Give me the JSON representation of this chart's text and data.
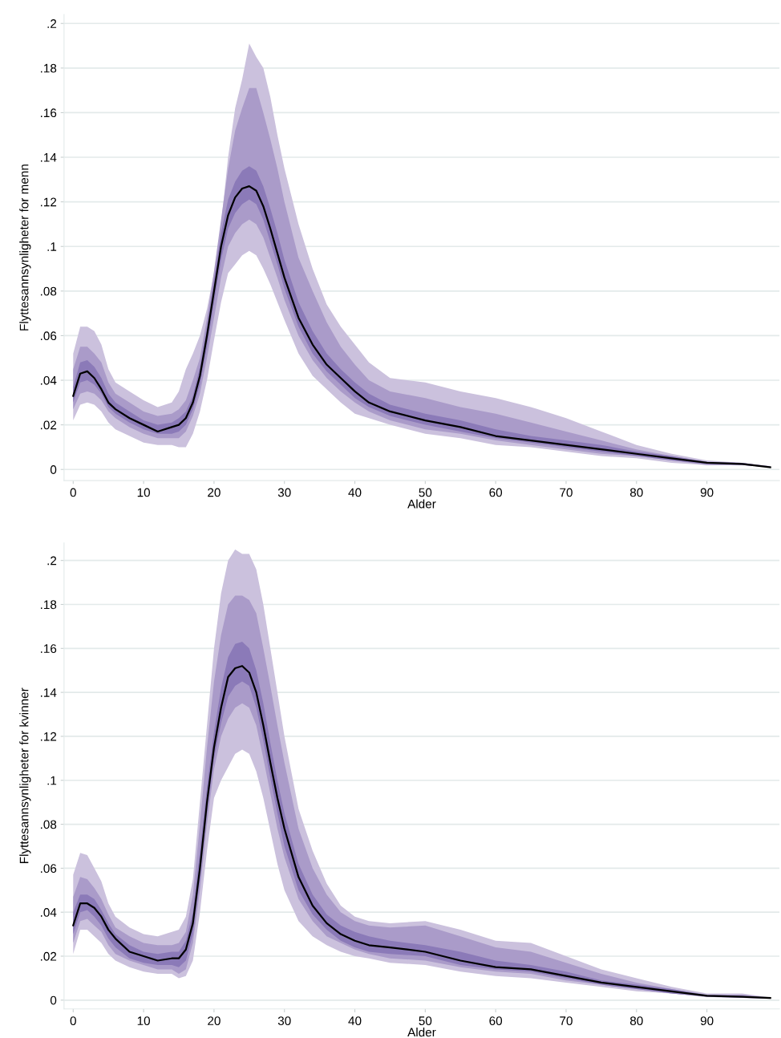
{
  "chart_data": [
    {
      "type": "line",
      "xlabel": "Alder",
      "ylabel": "Flyttesannsynligheter for menn",
      "grid": "y",
      "marker": "none",
      "line_style": "solid",
      "xlim": [
        -1.3,
        100.3
      ],
      "xticks": [
        0,
        10,
        20,
        30,
        40,
        50,
        60,
        70,
        80,
        90
      ],
      "ylim": [
        -0.005,
        0.204
      ],
      "yticks": [
        0,
        {
          "value": 0.02,
          "label": ".02"
        },
        {
          "value": 0.04,
          "label": ".04"
        },
        {
          "value": 0.06,
          "label": ".06"
        },
        {
          "value": 0.08,
          "label": ".08"
        },
        {
          "value": 0.1,
          "label": ".1"
        },
        {
          "value": 0.12,
          "label": ".12"
        },
        {
          "value": 0.14,
          "label": ".14"
        },
        {
          "value": 0.16,
          "label": ".16"
        },
        {
          "value": 0.18,
          "label": ".18"
        },
        {
          "value": 0.2,
          "label": ".2"
        }
      ],
      "x": [
        0,
        1,
        2,
        3,
        4,
        5,
        6,
        8,
        10,
        12,
        14,
        15,
        16,
        17,
        18,
        19,
        20,
        21,
        22,
        23,
        24,
        25,
        26,
        27,
        28,
        29,
        30,
        32,
        34,
        36,
        38,
        40,
        42,
        45,
        50,
        55,
        60,
        65,
        70,
        75,
        80,
        85,
        90,
        95,
        99
      ],
      "series": [
        {
          "type": "area",
          "color": "#cbc1dd",
          "values": [
            null,
            null,
            null,
            null,
            null,
            null,
            null,
            null,
            null,
            null,
            null,
            null,
            null,
            null,
            null,
            null,
            null,
            null,
            null,
            null,
            null,
            null,
            null,
            null,
            null,
            null,
            null,
            null,
            null,
            null,
            null,
            null,
            null,
            null,
            null,
            null,
            null,
            null,
            null,
            null,
            null,
            null,
            null,
            null,
            null
          ],
          "lower": [
            0.022,
            0.029,
            0.03,
            0.029,
            0.026,
            0.021,
            0.018,
            0.015,
            0.012,
            0.011,
            0.011,
            0.01,
            0.01,
            0.016,
            0.026,
            0.04,
            0.058,
            0.075,
            0.088,
            0.092,
            0.096,
            0.098,
            0.096,
            0.09,
            0.083,
            0.075,
            0.067,
            0.052,
            0.042,
            0.036,
            0.03,
            0.025,
            0.023,
            0.02,
            0.016,
            0.014,
            0.011,
            0.01,
            0.008,
            0.006,
            0.005,
            0.003,
            0.002,
            0.002,
            0.001
          ],
          "upper": [
            0.052,
            0.064,
            0.064,
            0.062,
            0.056,
            0.045,
            0.039,
            0.035,
            0.031,
            0.028,
            0.03,
            0.035,
            0.045,
            0.052,
            0.06,
            0.072,
            0.088,
            0.11,
            0.14,
            0.162,
            0.175,
            0.191,
            0.185,
            0.18,
            0.167,
            0.15,
            0.135,
            0.11,
            0.09,
            0.074,
            0.064,
            0.056,
            0.048,
            0.041,
            0.039,
            0.035,
            0.032,
            0.028,
            0.023,
            0.017,
            0.011,
            0.007,
            0.004,
            0.003,
            0.0015
          ]
        },
        {
          "type": "area",
          "color": "#aa9bc9",
          "values": [
            null,
            null,
            null,
            null,
            null,
            null,
            null,
            null,
            null,
            null,
            null,
            null,
            null,
            null,
            null,
            null,
            null,
            null,
            null,
            null,
            null,
            null,
            null,
            null,
            null,
            null,
            null,
            null,
            null,
            null,
            null,
            null,
            null,
            null,
            null,
            null,
            null,
            null,
            null,
            null,
            null,
            null,
            null,
            null,
            null
          ],
          "lower": [
            0.027,
            0.034,
            0.035,
            0.034,
            0.031,
            0.026,
            0.023,
            0.019,
            0.016,
            0.014,
            0.014,
            0.014,
            0.017,
            0.024,
            0.034,
            0.05,
            0.068,
            0.086,
            0.1,
            0.106,
            0.11,
            0.112,
            0.11,
            0.104,
            0.095,
            0.086,
            0.076,
            0.06,
            0.049,
            0.041,
            0.035,
            0.03,
            0.026,
            0.022,
            0.018,
            0.016,
            0.013,
            0.011,
            0.009,
            0.007,
            0.006,
            0.004,
            0.002,
            0.002,
            0.001
          ],
          "upper": [
            0.045,
            0.055,
            0.055,
            0.052,
            0.048,
            0.039,
            0.034,
            0.03,
            0.026,
            0.024,
            0.025,
            0.027,
            0.031,
            0.04,
            0.05,
            0.068,
            0.089,
            0.112,
            0.135,
            0.152,
            0.162,
            0.171,
            0.171,
            0.16,
            0.148,
            0.135,
            0.12,
            0.095,
            0.08,
            0.066,
            0.055,
            0.047,
            0.04,
            0.035,
            0.032,
            0.028,
            0.025,
            0.021,
            0.017,
            0.013,
            0.009,
            0.006,
            0.0035,
            0.003,
            0.0013
          ]
        },
        {
          "type": "area",
          "color": "#8b7ab8",
          "values": [
            null,
            null,
            null,
            null,
            null,
            null,
            null,
            null,
            null,
            null,
            null,
            null,
            null,
            null,
            null,
            null,
            null,
            null,
            null,
            null,
            null,
            null,
            null,
            null,
            null,
            null,
            null,
            null,
            null,
            null,
            null,
            null,
            null,
            null,
            null,
            null,
            null,
            null,
            null,
            null,
            null,
            null,
            null,
            null,
            null
          ],
          "lower": [
            0.03,
            0.039,
            0.04,
            0.038,
            0.034,
            0.028,
            0.025,
            0.021,
            0.018,
            0.016,
            0.016,
            0.017,
            0.02,
            0.027,
            0.038,
            0.055,
            0.075,
            0.094,
            0.108,
            0.115,
            0.119,
            0.121,
            0.119,
            0.112,
            0.102,
            0.092,
            0.081,
            0.064,
            0.052,
            0.044,
            0.038,
            0.032,
            0.028,
            0.024,
            0.02,
            0.017,
            0.014,
            0.012,
            0.01,
            0.008,
            0.006,
            0.004,
            0.0025,
            0.002,
            0.001
          ],
          "upper": [
            0.037,
            0.048,
            0.049,
            0.046,
            0.041,
            0.034,
            0.03,
            0.026,
            0.022,
            0.02,
            0.021,
            0.023,
            0.026,
            0.033,
            0.046,
            0.064,
            0.085,
            0.106,
            0.121,
            0.129,
            0.134,
            0.136,
            0.134,
            0.127,
            0.117,
            0.106,
            0.094,
            0.075,
            0.062,
            0.052,
            0.045,
            0.039,
            0.034,
            0.029,
            0.025,
            0.022,
            0.018,
            0.015,
            0.013,
            0.011,
            0.008,
            0.006,
            0.0033,
            0.003,
            0.0012
          ]
        },
        {
          "type": "line",
          "color": "#000000",
          "values": [
            0.033,
            0.043,
            0.044,
            0.041,
            0.036,
            0.03,
            0.027,
            0.023,
            0.02,
            0.017,
            0.019,
            0.02,
            0.023,
            0.03,
            0.042,
            0.06,
            0.08,
            0.1,
            0.114,
            0.122,
            0.126,
            0.127,
            0.125,
            0.118,
            0.108,
            0.097,
            0.086,
            0.068,
            0.056,
            0.047,
            0.041,
            0.035,
            0.03,
            0.026,
            0.022,
            0.019,
            0.015,
            0.013,
            0.011,
            0.009,
            0.007,
            0.005,
            0.003,
            0.0025,
            0.001
          ]
        }
      ]
    },
    {
      "type": "line",
      "xlabel": "Alder",
      "ylabel": "Flyttesannsynligheter for kvinner",
      "grid": "y",
      "marker": "none",
      "line_style": "solid",
      "xlim": [
        -1.3,
        100.3
      ],
      "xticks": [
        0,
        10,
        20,
        30,
        40,
        50,
        60,
        70,
        80,
        90
      ],
      "ylim": [
        -0.004,
        0.208
      ],
      "yticks": [
        0,
        {
          "value": 0.02,
          "label": ".02"
        },
        {
          "value": 0.04,
          "label": ".04"
        },
        {
          "value": 0.06,
          "label": ".06"
        },
        {
          "value": 0.08,
          "label": ".08"
        },
        {
          "value": 0.1,
          "label": ".1"
        },
        {
          "value": 0.12,
          "label": ".12"
        },
        {
          "value": 0.14,
          "label": ".14"
        },
        {
          "value": 0.16,
          "label": ".16"
        },
        {
          "value": 0.18,
          "label": ".18"
        },
        {
          "value": 0.2,
          "label": ".2"
        }
      ],
      "x": [
        0,
        1,
        2,
        3,
        4,
        5,
        6,
        8,
        10,
        12,
        14,
        15,
        16,
        17,
        18,
        19,
        20,
        21,
        22,
        23,
        24,
        25,
        26,
        27,
        28,
        29,
        30,
        32,
        34,
        36,
        38,
        40,
        42,
        45,
        50,
        55,
        60,
        65,
        70,
        75,
        80,
        85,
        90,
        95,
        99
      ],
      "series": [
        {
          "type": "area",
          "color": "#cbc1dd",
          "values": [
            null,
            null,
            null,
            null,
            null,
            null,
            null,
            null,
            null,
            null,
            null,
            null,
            null,
            null,
            null,
            null,
            null,
            null,
            null,
            null,
            null,
            null,
            null,
            null,
            null,
            null,
            null,
            null,
            null,
            null,
            null,
            null,
            null,
            null,
            null,
            null,
            null,
            null,
            null,
            null,
            null,
            null,
            null,
            null,
            null
          ],
          "lower": [
            0.021,
            0.032,
            0.032,
            0.029,
            0.026,
            0.021,
            0.018,
            0.015,
            0.013,
            0.012,
            0.012,
            0.01,
            0.011,
            0.018,
            0.04,
            0.068,
            0.092,
            0.1,
            0.106,
            0.112,
            0.114,
            0.112,
            0.104,
            0.092,
            0.077,
            0.062,
            0.05,
            0.036,
            0.029,
            0.025,
            0.022,
            0.02,
            0.019,
            0.017,
            0.016,
            0.013,
            0.011,
            0.01,
            0.008,
            0.006,
            0.004,
            0.003,
            0.0015,
            0.001,
            0.0006
          ],
          "upper": [
            0.057,
            0.067,
            0.066,
            0.06,
            0.054,
            0.044,
            0.038,
            0.033,
            0.03,
            0.029,
            0.031,
            0.032,
            0.038,
            0.055,
            0.09,
            0.125,
            0.16,
            0.185,
            0.2,
            0.205,
            0.203,
            0.203,
            0.196,
            0.18,
            0.16,
            0.14,
            0.12,
            0.087,
            0.068,
            0.053,
            0.043,
            0.038,
            0.036,
            0.035,
            0.036,
            0.032,
            0.027,
            0.026,
            0.02,
            0.014,
            0.01,
            0.006,
            0.003,
            0.003,
            0.0012
          ]
        },
        {
          "type": "area",
          "color": "#aa9bc9",
          "values": [
            null,
            null,
            null,
            null,
            null,
            null,
            null,
            null,
            null,
            null,
            null,
            null,
            null,
            null,
            null,
            null,
            null,
            null,
            null,
            null,
            null,
            null,
            null,
            null,
            null,
            null,
            null,
            null,
            null,
            null,
            null,
            null,
            null,
            null,
            null,
            null,
            null,
            null,
            null,
            null,
            null,
            null,
            null,
            null,
            null
          ],
          "lower": [
            0.026,
            0.036,
            0.037,
            0.034,
            0.031,
            0.025,
            0.021,
            0.018,
            0.016,
            0.014,
            0.014,
            0.012,
            0.014,
            0.026,
            0.05,
            0.08,
            0.105,
            0.12,
            0.128,
            0.133,
            0.135,
            0.133,
            0.125,
            0.11,
            0.094,
            0.078,
            0.065,
            0.046,
            0.036,
            0.029,
            0.026,
            0.023,
            0.021,
            0.019,
            0.018,
            0.015,
            0.013,
            0.012,
            0.009,
            0.007,
            0.005,
            0.003,
            0.0015,
            0.001,
            0.0007
          ],
          "upper": [
            0.047,
            0.056,
            0.055,
            0.051,
            0.046,
            0.039,
            0.033,
            0.029,
            0.026,
            0.025,
            0.025,
            0.026,
            0.031,
            0.048,
            0.08,
            0.115,
            0.145,
            0.166,
            0.18,
            0.184,
            0.184,
            0.182,
            0.176,
            0.16,
            0.143,
            0.125,
            0.108,
            0.078,
            0.06,
            0.048,
            0.04,
            0.036,
            0.034,
            0.033,
            0.034,
            0.029,
            0.024,
            0.022,
            0.017,
            0.012,
            0.008,
            0.005,
            0.0025,
            0.0025,
            0.001
          ]
        },
        {
          "type": "area",
          "color": "#8b7ab8",
          "values": [
            null,
            null,
            null,
            null,
            null,
            null,
            null,
            null,
            null,
            null,
            null,
            null,
            null,
            null,
            null,
            null,
            null,
            null,
            null,
            null,
            null,
            null,
            null,
            null,
            null,
            null,
            null,
            null,
            null,
            null,
            null,
            null,
            null,
            null,
            null,
            null,
            null,
            null,
            null,
            null,
            null,
            null,
            null,
            null,
            null
          ],
          "lower": [
            0.03,
            0.04,
            0.041,
            0.038,
            0.034,
            0.028,
            0.024,
            0.019,
            0.017,
            0.016,
            0.016,
            0.015,
            0.018,
            0.03,
            0.055,
            0.085,
            0.11,
            0.126,
            0.138,
            0.143,
            0.145,
            0.143,
            0.133,
            0.118,
            0.101,
            0.085,
            0.07,
            0.05,
            0.039,
            0.032,
            0.027,
            0.024,
            0.022,
            0.021,
            0.02,
            0.016,
            0.014,
            0.013,
            0.01,
            0.007,
            0.005,
            0.003,
            0.0017,
            0.0012,
            0.0008
          ],
          "upper": [
            0.04,
            0.048,
            0.048,
            0.046,
            0.041,
            0.035,
            0.03,
            0.025,
            0.022,
            0.021,
            0.022,
            0.022,
            0.027,
            0.04,
            0.068,
            0.097,
            0.122,
            0.142,
            0.156,
            0.162,
            0.163,
            0.16,
            0.15,
            0.135,
            0.117,
            0.1,
            0.085,
            0.062,
            0.048,
            0.039,
            0.034,
            0.031,
            0.029,
            0.027,
            0.025,
            0.022,
            0.018,
            0.016,
            0.013,
            0.009,
            0.007,
            0.005,
            0.0023,
            0.002,
            0.001
          ]
        },
        {
          "type": "line",
          "color": "#000000",
          "values": [
            0.034,
            0.044,
            0.044,
            0.042,
            0.038,
            0.032,
            0.028,
            0.022,
            0.02,
            0.018,
            0.019,
            0.019,
            0.023,
            0.035,
            0.06,
            0.09,
            0.115,
            0.133,
            0.147,
            0.151,
            0.152,
            0.149,
            0.14,
            0.125,
            0.108,
            0.092,
            0.078,
            0.056,
            0.043,
            0.035,
            0.03,
            0.027,
            0.025,
            0.024,
            0.022,
            0.018,
            0.015,
            0.014,
            0.011,
            0.008,
            0.006,
            0.004,
            0.002,
            0.0015,
            0.001
          ]
        }
      ]
    }
  ]
}
